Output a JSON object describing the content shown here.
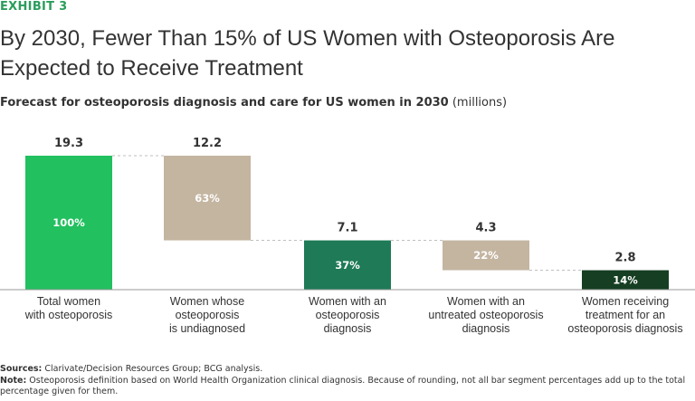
{
  "header": {
    "exhibit": "EXHIBIT 3",
    "title": "By 2030, Fewer Than 15% of US Women with Osteoporosis Are Expected to Receive Treatment"
  },
  "subtitle": {
    "main": "Forecast for osteoporosis diagnosis and care for US women in 2030",
    "units": "(millions)"
  },
  "chart_data": {
    "type": "bar",
    "subtype": "waterfall",
    "title": "Forecast for osteoporosis diagnosis and care for US women in 2030 (millions)",
    "ylim": [
      0,
      19.3
    ],
    "categories": [
      [
        "Total women",
        "with osteoporosis"
      ],
      [
        "Women whose",
        "osteoporosis",
        "is undiagnosed"
      ],
      [
        "Women with an",
        "osteoporosis",
        "diagnosis"
      ],
      [
        "Women with an",
        "untreated osteoporosis",
        "diagnosis"
      ],
      [
        "Women receiving",
        "treatment for an",
        "osteoporosis diagnosis"
      ]
    ],
    "values": [
      19.3,
      12.2,
      7.1,
      4.3,
      2.8
    ],
    "value_labels": [
      "19.3",
      "12.2",
      "7.1",
      "4.3",
      "2.8"
    ],
    "bases": [
      0,
      7.1,
      0,
      2.8,
      0
    ],
    "percent_labels": [
      "100%",
      "63%",
      "37%",
      "22%",
      "14%"
    ],
    "colors": [
      "#22c05f",
      "#c4b5a1",
      "#1e7a57",
      "#c4b5a1",
      "#153e22"
    ],
    "percent_label_colors": [
      "#ffffff",
      "#ffffff",
      "#ffffff",
      "#ffffff",
      "#ffffff"
    ],
    "connector_color": "#bfbfbf",
    "grid": false
  },
  "footer": {
    "sources_label": "Sources:",
    "sources_text": "Clarivate/Decision Resources Group; BCG analysis.",
    "note_label": "Note:",
    "note_text": "Osteoporosis definition based on World Health Organization clinical diagnosis. Because of rounding, not all bar segment percentages add up to the total percentage given for them."
  }
}
